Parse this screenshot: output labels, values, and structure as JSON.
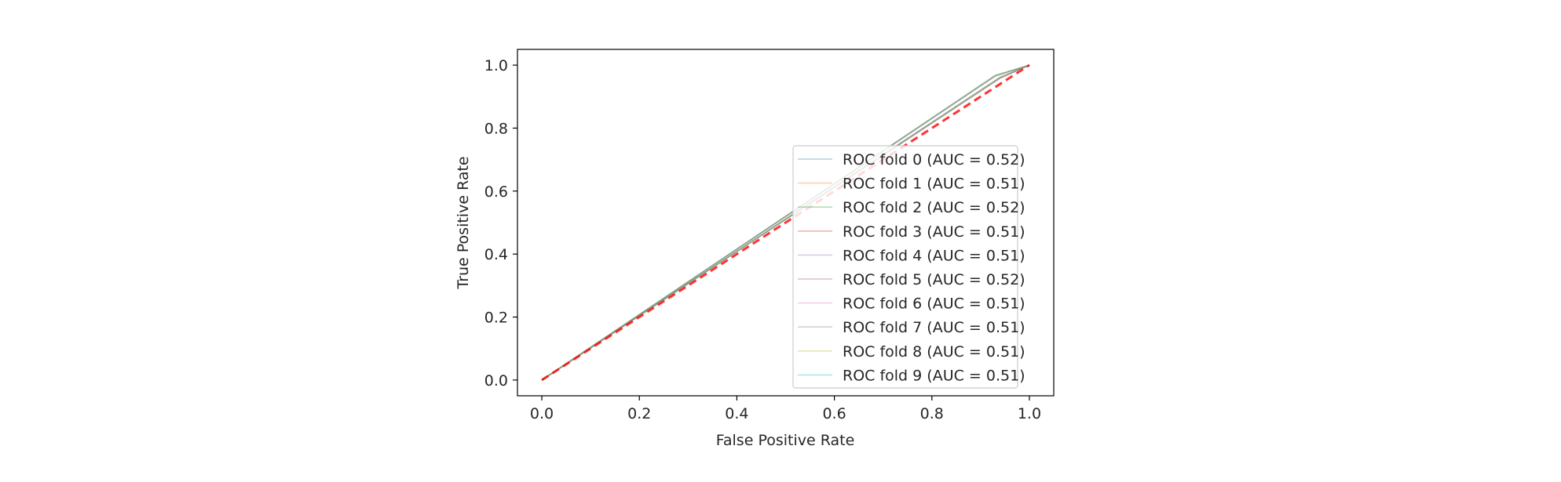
{
  "chart_data": {
    "type": "line",
    "title": "",
    "xlabel": "False Positive Rate",
    "ylabel": "True Positive Rate",
    "xlim": [
      -0.05,
      1.05
    ],
    "ylim": [
      -0.05,
      1.05
    ],
    "xticks": [
      "0.0",
      "0.2",
      "0.4",
      "0.6",
      "0.8",
      "1.0"
    ],
    "yticks": [
      "0.0",
      "0.2",
      "0.4",
      "0.6",
      "0.8",
      "1.0"
    ],
    "grid": false,
    "legend_position": "lower-right",
    "series": [
      {
        "name": "ROC fold 0 (AUC = 0.52)",
        "color": "#1f77b4",
        "x": [
          0,
          0.93,
          1
        ],
        "y": [
          0,
          0.966,
          1
        ]
      },
      {
        "name": "ROC fold 1 (AUC = 0.51)",
        "color": "#ff7f0e",
        "x": [
          0,
          0.94,
          1
        ],
        "y": [
          0,
          0.961,
          1
        ]
      },
      {
        "name": "ROC fold 2 (AUC = 0.52)",
        "color": "#2ca02c",
        "x": [
          0,
          0.93,
          1
        ],
        "y": [
          0,
          0.968,
          1
        ]
      },
      {
        "name": "ROC fold 3 (AUC = 0.51)",
        "color": "#d62728",
        "x": [
          0,
          0.94,
          1
        ],
        "y": [
          0,
          0.959,
          1
        ]
      },
      {
        "name": "ROC fold 4 (AUC = 0.51)",
        "color": "#9467bd",
        "x": [
          0,
          0.94,
          1
        ],
        "y": [
          0,
          0.96,
          1
        ]
      },
      {
        "name": "ROC fold 5 (AUC = 0.52)",
        "color": "#8c564b",
        "x": [
          0,
          0.93,
          1
        ],
        "y": [
          0,
          0.965,
          1
        ]
      },
      {
        "name": "ROC fold 6 (AUC = 0.51)",
        "color": "#e377c2",
        "x": [
          0,
          0.94,
          1
        ],
        "y": [
          0,
          0.958,
          1
        ]
      },
      {
        "name": "ROC fold 7 (AUC = 0.51)",
        "color": "#7f7f7f",
        "x": [
          0,
          0.94,
          1
        ],
        "y": [
          0,
          0.962,
          1
        ]
      },
      {
        "name": "ROC fold 8 (AUC = 0.51)",
        "color": "#bcbd22",
        "x": [
          0,
          0.94,
          1
        ],
        "y": [
          0,
          0.96,
          1
        ]
      },
      {
        "name": "ROC fold 9 (AUC = 0.51)",
        "color": "#17becf",
        "x": [
          0,
          0.94,
          1
        ],
        "y": [
          0,
          0.959,
          1
        ]
      }
    ],
    "reference_line": {
      "color": "#ff0000",
      "style": "dashed",
      "x": [
        0,
        1
      ],
      "y": [
        0,
        1
      ]
    }
  }
}
